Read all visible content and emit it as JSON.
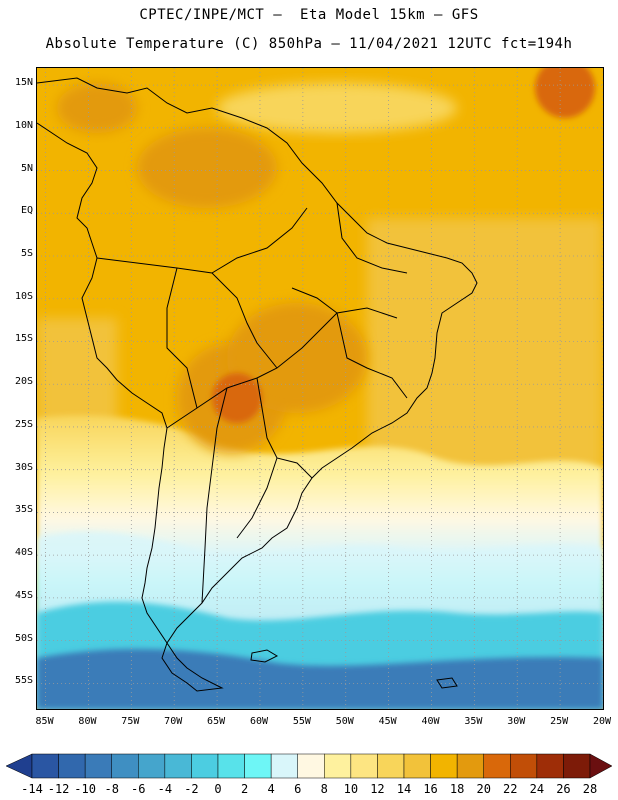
{
  "header": {
    "title_line1": "CPTEC/INPE/MCT –  Eta Model 15km – GFS",
    "title_line2": "Absolute Temperature (C) 850hPa – 11/04/2021 12UTC fct=194h"
  },
  "map": {
    "lat_labels": [
      "15N",
      "10N",
      "5N",
      "EQ",
      "5S",
      "10S",
      "15S",
      "20S",
      "25S",
      "30S",
      "35S",
      "40S",
      "45S",
      "50S",
      "55S"
    ],
    "lon_labels": [
      "85W",
      "80W",
      "75W",
      "70W",
      "65W",
      "60W",
      "55W",
      "50W",
      "45W",
      "40W",
      "35W",
      "30W",
      "25W",
      "20W"
    ],
    "extent": {
      "lon_min": -86,
      "lon_max": -20,
      "lat_min": -58,
      "lat_max": 17
    },
    "grid": "dotted",
    "gridline_color": "#9a9a9a",
    "coastline_color": "#000000"
  },
  "colorbar": {
    "labels": [
      "-14",
      "-12",
      "-10",
      "-8",
      "-6",
      "-4",
      "-2",
      "0",
      "2",
      "4",
      "6",
      "8",
      "10",
      "12",
      "14",
      "16",
      "18",
      "20",
      "22",
      "24",
      "26",
      "28"
    ],
    "colors": [
      "#1f3f8f",
      "#2a56a3",
      "#3168ad",
      "#3a7bb8",
      "#3f8fc2",
      "#45a5cc",
      "#49b8d6",
      "#4ccde1",
      "#58e2ea",
      "#6ef6f6",
      "#d9f6fa",
      "#fff8e2",
      "#fef19e",
      "#fde582",
      "#f8d55a",
      "#f2c23a",
      "#f2b400",
      "#e39a0e",
      "#d9680a",
      "#c14e07",
      "#9e2d07",
      "#7d1b08",
      "#6a0f10"
    ]
  }
}
